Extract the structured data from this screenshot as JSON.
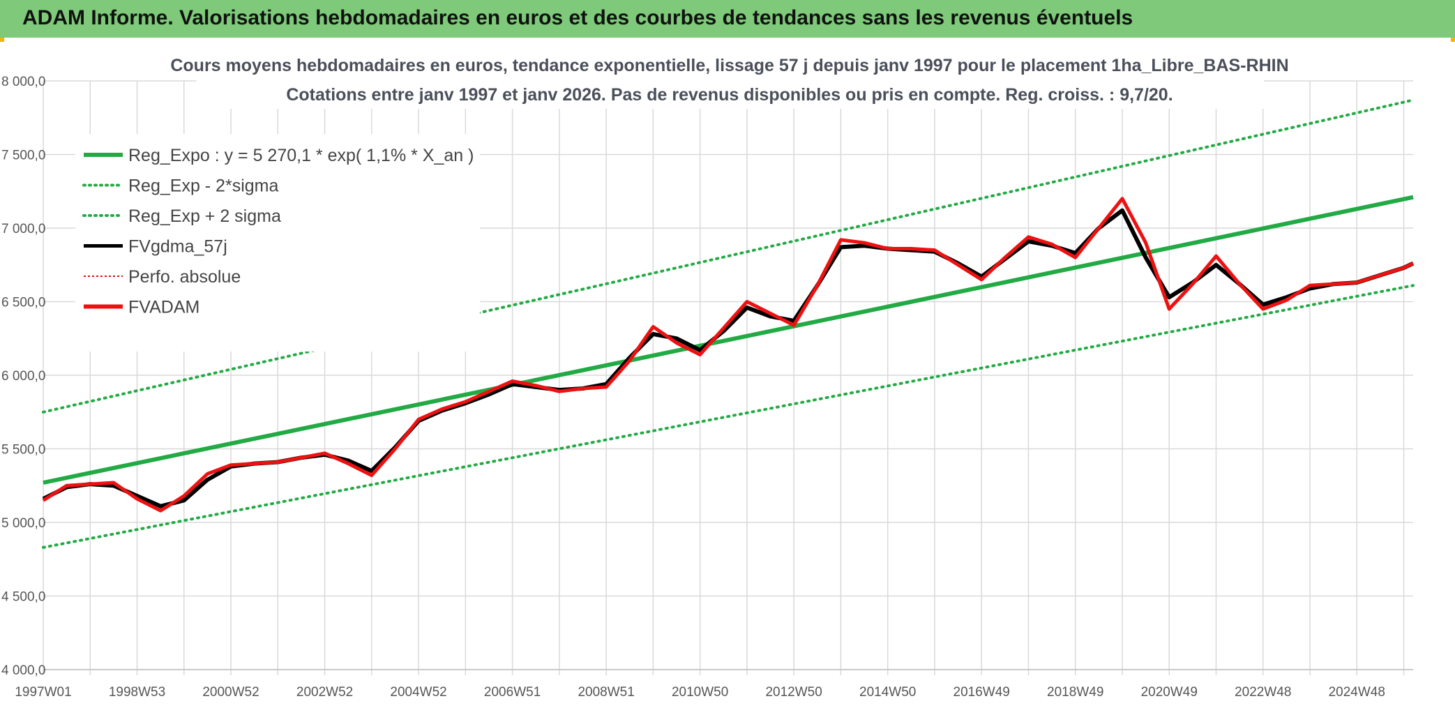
{
  "banner": {
    "title": "ADAM Informe. Valorisations hebdomadaires en euros et des courbes de tendances sans les revenus éventuels",
    "color": "#7ec97a"
  },
  "chart_data": {
    "type": "line",
    "title_lines": [
      "Cours moyens hebdomadaires en euros, tendance exponentielle, lissage 57 j depuis janv 1997 pour le placement 1ha_Libre_BAS-RHIN",
      "Cotations entre janv 1997 et janv 2026. Pas de revenus disponibles ou pris en compte. Reg. croiss. : 9,7/20."
    ],
    "xlabel": "",
    "ylabel": "",
    "ylim": [
      4000,
      8000
    ],
    "y_ticks": [
      "4 000,0",
      "4 500,0",
      "5 000,0",
      "5 500,0",
      "6 000,0",
      "6 500,0",
      "7 000,0",
      "7 500,0",
      "8 000,0"
    ],
    "y_tick_values": [
      4000,
      4500,
      5000,
      5500,
      6000,
      6500,
      7000,
      7500,
      8000
    ],
    "x_range": [
      1997.0,
      2026.2
    ],
    "x_ticks": [
      {
        "label": "1997W01",
        "x": 1997.0
      },
      {
        "label": "1998W53",
        "x": 1999.0
      },
      {
        "label": "2000W52",
        "x": 2001.0
      },
      {
        "label": "2002W52",
        "x": 2003.0
      },
      {
        "label": "2004W52",
        "x": 2005.0
      },
      {
        "label": "2006W51",
        "x": 2007.0
      },
      {
        "label": "2008W51",
        "x": 2009.0
      },
      {
        "label": "2010W50",
        "x": 2011.0
      },
      {
        "label": "2012W50",
        "x": 2013.0
      },
      {
        "label": "2014W50",
        "x": 2015.0
      },
      {
        "label": "2016W49",
        "x": 2017.0
      },
      {
        "label": "2018W49",
        "x": 2019.0
      },
      {
        "label": "2020W49",
        "x": 2021.0
      },
      {
        "label": "2022W48",
        "x": 2023.0
      },
      {
        "label": "2024W48",
        "x": 2025.0
      }
    ],
    "legend": [
      {
        "label": "Reg_Expo : y = 5 270,1 * exp( 1,1% *  X_an )",
        "color": "#22aa44",
        "style": "solid-thick"
      },
      {
        "label": "Reg_Exp - 2*sigma",
        "color": "#22aa44",
        "style": "dotted"
      },
      {
        "label": "Reg_Exp + 2 sigma",
        "color": "#22aa44",
        "style": "dotted"
      },
      {
        "label": "FVgdma_57j",
        "color": "#000000",
        "style": "solid"
      },
      {
        "label": "Perfo. absolue",
        "color": "#dd1111",
        "style": "dotted-thin"
      },
      {
        "label": "FVADAM",
        "color": "#ee1111",
        "style": "solid-thick"
      }
    ],
    "series": [
      {
        "name": "Reg_Expo : y = 5 270,1 * exp( 1,1% *  X_an )",
        "color": "#22aa44",
        "x": [
          1997.0,
          2026.2
        ],
        "y": [
          5270,
          7210
        ]
      },
      {
        "name": "Reg_Exp - 2*sigma",
        "color": "#22aa44",
        "x": [
          1997.0,
          2026.2
        ],
        "y": [
          4830,
          6610
        ]
      },
      {
        "name": "Reg_Exp + 2 sigma",
        "color": "#22aa44",
        "x": [
          1997.0,
          2026.2
        ],
        "y": [
          5750,
          7870
        ]
      },
      {
        "name": "FVgdma_57j",
        "color": "#000000",
        "x": [
          1997.0,
          1997.5,
          1998.0,
          1998.5,
          1999.0,
          1999.5,
          2000.0,
          2000.5,
          2001.0,
          2001.5,
          2002.0,
          2002.5,
          2003.0,
          2003.5,
          2004.0,
          2004.5,
          2005.0,
          2005.5,
          2006.0,
          2006.5,
          2007.0,
          2007.5,
          2008.0,
          2008.5,
          2009.0,
          2009.5,
          2010.0,
          2010.5,
          2011.0,
          2011.5,
          2012.0,
          2012.5,
          2013.0,
          2013.5,
          2014.0,
          2014.5,
          2015.0,
          2015.5,
          2016.0,
          2016.5,
          2017.0,
          2017.5,
          2018.0,
          2018.5,
          2019.0,
          2019.5,
          2020.0,
          2020.5,
          2021.0,
          2021.5,
          2022.0,
          2022.5,
          2023.0,
          2023.5,
          2024.0,
          2024.5,
          2025.0,
          2025.5,
          2026.0,
          2026.2
        ],
        "y": [
          5160,
          5240,
          5260,
          5250,
          5180,
          5110,
          5150,
          5290,
          5380,
          5400,
          5410,
          5440,
          5460,
          5420,
          5350,
          5510,
          5690,
          5760,
          5810,
          5870,
          5940,
          5920,
          5900,
          5910,
          5940,
          6120,
          6280,
          6250,
          6170,
          6300,
          6460,
          6400,
          6370,
          6610,
          6870,
          6880,
          6860,
          6850,
          6840,
          6760,
          6670,
          6790,
          6910,
          6880,
          6830,
          7000,
          7120,
          6800,
          6530,
          6630,
          6750,
          6620,
          6480,
          6530,
          6590,
          6620,
          6630,
          6680,
          6730,
          6760
        ]
      },
      {
        "name": "Perfo. absolue",
        "color": "#dd1111",
        "x": [
          1997.0,
          1997.5,
          1998.0,
          1998.5,
          1999.0,
          1999.5,
          2000.0,
          2000.5,
          2001.0,
          2001.5,
          2002.0,
          2002.5,
          2003.0,
          2003.5,
          2004.0,
          2004.5,
          2005.0,
          2005.5,
          2006.0,
          2006.5,
          2007.0,
          2007.5,
          2008.0,
          2008.5,
          2009.0,
          2009.5,
          2010.0,
          2010.5,
          2011.0,
          2011.5,
          2012.0,
          2012.5,
          2013.0,
          2013.5,
          2014.0,
          2014.5,
          2015.0,
          2015.5,
          2016.0,
          2016.5,
          2017.0,
          2017.5,
          2018.0,
          2018.5,
          2019.0,
          2019.5,
          2020.0,
          2020.5,
          2021.0,
          2021.5,
          2022.0,
          2022.5,
          2023.0,
          2023.5,
          2024.0,
          2024.5,
          2025.0,
          2025.5,
          2026.0,
          2026.2
        ],
        "y": [
          5150,
          5250,
          5260,
          5270,
          5160,
          5080,
          5180,
          5330,
          5390,
          5400,
          5410,
          5440,
          5470,
          5400,
          5320,
          5500,
          5700,
          5770,
          5820,
          5890,
          5960,
          5930,
          5890,
          5910,
          5920,
          6100,
          6330,
          6220,
          6140,
          6320,
          6500,
          6420,
          6340,
          6610,
          6920,
          6900,
          6860,
          6860,
          6850,
          6750,
          6650,
          6800,
          6940,
          6890,
          6800,
          7000,
          7200,
          6900,
          6450,
          6620,
          6810,
          6620,
          6450,
          6510,
          6610,
          6620,
          6630,
          6680,
          6730,
          6760
        ]
      },
      {
        "name": "FVADAM",
        "color": "#ee1111",
        "x": [
          1997.0,
          1997.5,
          1998.0,
          1998.5,
          1999.0,
          1999.5,
          2000.0,
          2000.5,
          2001.0,
          2001.5,
          2002.0,
          2002.5,
          2003.0,
          2003.5,
          2004.0,
          2004.5,
          2005.0,
          2005.5,
          2006.0,
          2006.5,
          2007.0,
          2007.5,
          2008.0,
          2008.5,
          2009.0,
          2009.5,
          2010.0,
          2010.5,
          2011.0,
          2011.5,
          2012.0,
          2012.5,
          2013.0,
          2013.5,
          2014.0,
          2014.5,
          2015.0,
          2015.5,
          2016.0,
          2016.5,
          2017.0,
          2017.5,
          2018.0,
          2018.5,
          2019.0,
          2019.5,
          2020.0,
          2020.5,
          2021.0,
          2021.5,
          2022.0,
          2022.5,
          2023.0,
          2023.5,
          2024.0,
          2024.5,
          2025.0,
          2025.5,
          2026.0,
          2026.2
        ],
        "y": [
          5150,
          5250,
          5260,
          5270,
          5160,
          5080,
          5180,
          5330,
          5390,
          5400,
          5410,
          5440,
          5470,
          5400,
          5320,
          5500,
          5700,
          5770,
          5820,
          5890,
          5960,
          5930,
          5890,
          5910,
          5920,
          6100,
          6330,
          6220,
          6140,
          6320,
          6500,
          6420,
          6340,
          6610,
          6920,
          6900,
          6860,
          6860,
          6850,
          6750,
          6650,
          6800,
          6940,
          6890,
          6800,
          7000,
          7200,
          6900,
          6450,
          6620,
          6810,
          6620,
          6450,
          6510,
          6610,
          6620,
          6630,
          6680,
          6730,
          6760
        ]
      }
    ]
  }
}
